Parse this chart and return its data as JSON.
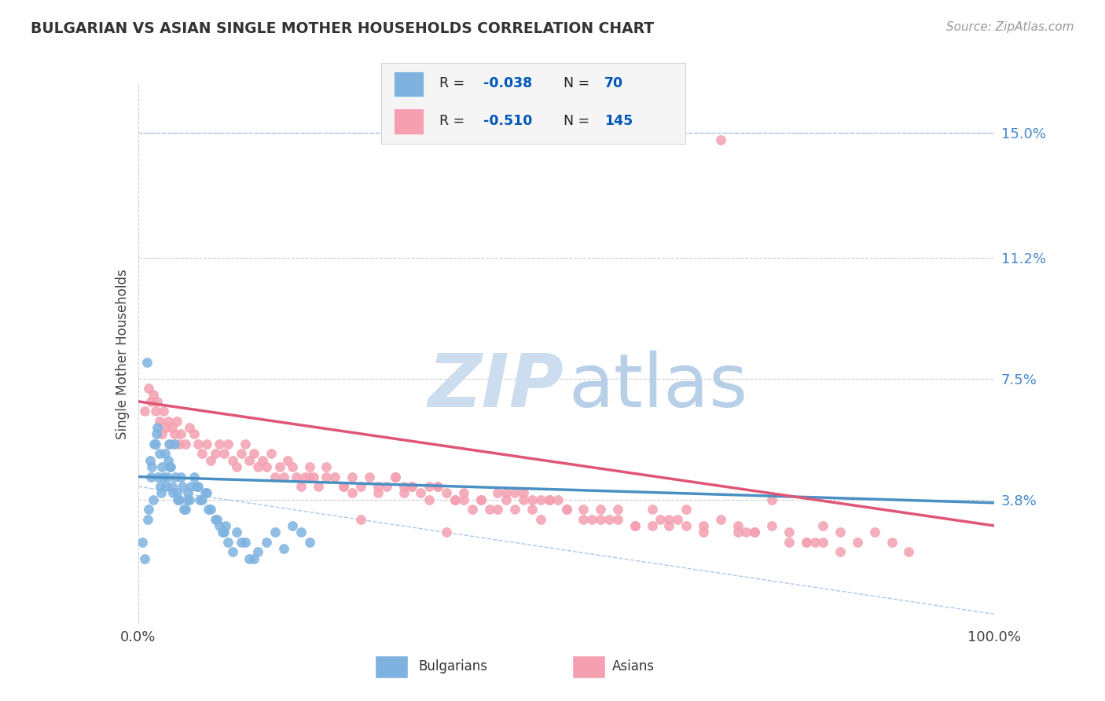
{
  "title": "BULGARIAN VS ASIAN SINGLE MOTHER HOUSEHOLDS CORRELATION CHART",
  "source": "Source: ZipAtlas.com",
  "ylabel": "Single Mother Households",
  "xlim": [
    0,
    100
  ],
  "ylim": [
    0,
    16.5
  ],
  "yticks": [
    3.8,
    7.5,
    11.2,
    15.0
  ],
  "ytick_labels": [
    "3.8%",
    "7.5%",
    "11.2%",
    "15.0%"
  ],
  "xtick_labels": [
    "0.0%",
    "100.0%"
  ],
  "bg_color": "#ffffff",
  "plot_bg_color": "#ffffff",
  "grid_color": "#cccccc",
  "bulgarian_color": "#7eb3e0",
  "asian_color": "#f4a0b0",
  "bulgarian_line_color": "#4a90c4",
  "asian_line_color": "#e05575",
  "dashed_line_color": "#aac8e8",
  "legend_R_color": "#0057b8",
  "watermark_zip_color": "#ccddf0",
  "watermark_atlas_color": "#b8cfe8",
  "bulgarian_R": -0.038,
  "bulgarian_N": 70,
  "asian_R": -0.51,
  "asian_N": 145,
  "bulgarian_scatter_x": [
    0.5,
    1.0,
    1.5,
    1.8,
    2.0,
    2.2,
    2.5,
    2.8,
    3.0,
    3.2,
    3.5,
    3.8,
    4.0,
    4.2,
    4.5,
    4.8,
    5.0,
    5.2,
    5.5,
    5.8,
    6.0,
    6.5,
    7.0,
    7.5,
    8.0,
    8.5,
    9.0,
    9.5,
    10.0,
    10.5,
    11.0,
    12.0,
    13.0,
    14.0,
    15.0,
    16.0,
    17.0,
    18.0,
    19.0,
    20.0,
    1.2,
    1.4,
    1.6,
    2.1,
    2.3,
    2.7,
    3.1,
    3.4,
    3.7,
    4.1,
    4.6,
    5.3,
    6.2,
    7.2,
    8.2,
    9.2,
    10.2,
    11.5,
    12.5,
    13.5,
    0.8,
    1.1,
    1.9,
    2.6,
    3.6,
    4.3,
    5.7,
    6.8,
    7.8,
    9.8
  ],
  "bulgarian_scatter_y": [
    2.5,
    8.0,
    4.5,
    3.8,
    5.5,
    6.0,
    5.2,
    4.8,
    4.5,
    4.2,
    5.0,
    4.8,
    4.2,
    5.5,
    4.0,
    3.8,
    4.5,
    4.2,
    3.5,
    4.0,
    3.8,
    4.5,
    4.2,
    3.8,
    4.0,
    3.5,
    3.2,
    3.0,
    2.8,
    2.5,
    2.2,
    2.5,
    2.0,
    2.2,
    2.5,
    2.8,
    2.3,
    3.0,
    2.8,
    2.5,
    3.5,
    5.0,
    4.8,
    5.8,
    4.5,
    4.0,
    5.2,
    4.5,
    4.8,
    4.0,
    3.8,
    3.5,
    4.2,
    3.8,
    3.5,
    3.2,
    3.0,
    2.8,
    2.5,
    2.0,
    2.0,
    3.2,
    5.5,
    4.2,
    5.5,
    4.5,
    3.8,
    4.2,
    4.0,
    2.8
  ],
  "asian_scatter_x": [
    0.8,
    1.2,
    1.5,
    1.8,
    2.0,
    2.2,
    2.5,
    2.8,
    3.0,
    3.2,
    3.5,
    3.8,
    4.0,
    4.2,
    4.5,
    4.8,
    5.0,
    5.5,
    6.0,
    6.5,
    7.0,
    7.5,
    8.0,
    8.5,
    9.0,
    9.5,
    10.0,
    10.5,
    11.0,
    11.5,
    12.0,
    12.5,
    13.0,
    13.5,
    14.0,
    14.5,
    15.0,
    15.5,
    16.0,
    16.5,
    17.0,
    17.5,
    18.0,
    18.5,
    19.0,
    19.5,
    20.0,
    20.5,
    21.0,
    22.0,
    23.0,
    24.0,
    25.0,
    26.0,
    27.0,
    28.0,
    29.0,
    30.0,
    31.0,
    32.0,
    33.0,
    34.0,
    35.0,
    36.0,
    37.0,
    38.0,
    39.0,
    40.0,
    41.0,
    42.0,
    43.0,
    44.0,
    45.0,
    46.0,
    47.0,
    48.0,
    50.0,
    52.0,
    54.0,
    56.0,
    58.0,
    60.0,
    62.0,
    64.0,
    66.0,
    68.0,
    70.0,
    72.0,
    74.0,
    76.0,
    78.0,
    80.0,
    82.0,
    84.0,
    86.0,
    88.0,
    90.0,
    55.0,
    45.0,
    30.0,
    48.0,
    63.0,
    35.0,
    52.0,
    28.0,
    72.0,
    40.0,
    58.0,
    22.0,
    76.0,
    38.0,
    62.0,
    50.0,
    44.0,
    32.0,
    70.0,
    42.0,
    60.0,
    80.0,
    26.0,
    74.0,
    36.0,
    64.0,
    54.0,
    20.0,
    78.0,
    46.0,
    34.0,
    66.0,
    56.0,
    24.0,
    82.0,
    37.0,
    61.0,
    49.0,
    43.0,
    31.0,
    71.0,
    53.0,
    25.0,
    79.0,
    47.0
  ],
  "asian_scatter_y": [
    6.5,
    7.2,
    6.8,
    7.0,
    6.5,
    6.8,
    6.2,
    5.8,
    6.5,
    6.0,
    6.2,
    5.5,
    6.0,
    5.8,
    6.2,
    5.5,
    5.8,
    5.5,
    6.0,
    5.8,
    5.5,
    5.2,
    5.5,
    5.0,
    5.2,
    5.5,
    5.2,
    5.5,
    5.0,
    4.8,
    5.2,
    5.5,
    5.0,
    5.2,
    4.8,
    5.0,
    4.8,
    5.2,
    4.5,
    4.8,
    4.5,
    5.0,
    4.8,
    4.5,
    4.2,
    4.5,
    4.8,
    4.5,
    4.2,
    4.8,
    4.5,
    4.2,
    4.0,
    4.2,
    4.5,
    4.0,
    4.2,
    4.5,
    4.0,
    4.2,
    4.0,
    3.8,
    4.2,
    4.0,
    3.8,
    4.0,
    3.5,
    3.8,
    3.5,
    4.0,
    3.8,
    3.5,
    3.8,
    3.5,
    3.2,
    3.8,
    3.5,
    3.2,
    3.5,
    3.2,
    3.0,
    3.5,
    3.2,
    3.0,
    2.8,
    3.2,
    3.0,
    2.8,
    3.0,
    2.8,
    2.5,
    3.0,
    2.8,
    2.5,
    2.8,
    2.5,
    2.2,
    3.2,
    4.0,
    4.5,
    3.8,
    3.2,
    4.2,
    3.5,
    4.2,
    2.8,
    3.8,
    3.0,
    4.5,
    2.5,
    3.8,
    3.0,
    3.5,
    4.0,
    4.2,
    2.8,
    3.5,
    3.0,
    2.5,
    3.2,
    3.8,
    2.8,
    3.5,
    3.2,
    4.5,
    2.5,
    3.8,
    4.2,
    3.0,
    3.5,
    4.2,
    2.2,
    3.8,
    3.2,
    3.8,
    4.0,
    4.2,
    2.8,
    3.2,
    4.5,
    2.5,
    3.8
  ],
  "asian_outlier_x": [
    68.0
  ],
  "asian_outlier_y": [
    14.8
  ],
  "b_trend_x0": 0,
  "b_trend_y0": 4.5,
  "b_trend_x1": 100,
  "b_trend_y1": 3.7,
  "a_trend_x0": 0,
  "a_trend_y0": 6.8,
  "a_trend_x1": 100,
  "a_trend_y1": 3.0,
  "dash_top_y": 15.0,
  "dash_bot_x0": 0,
  "dash_bot_y0": 4.2,
  "dash_bot_x1": 100,
  "dash_bot_y1": 0.3
}
